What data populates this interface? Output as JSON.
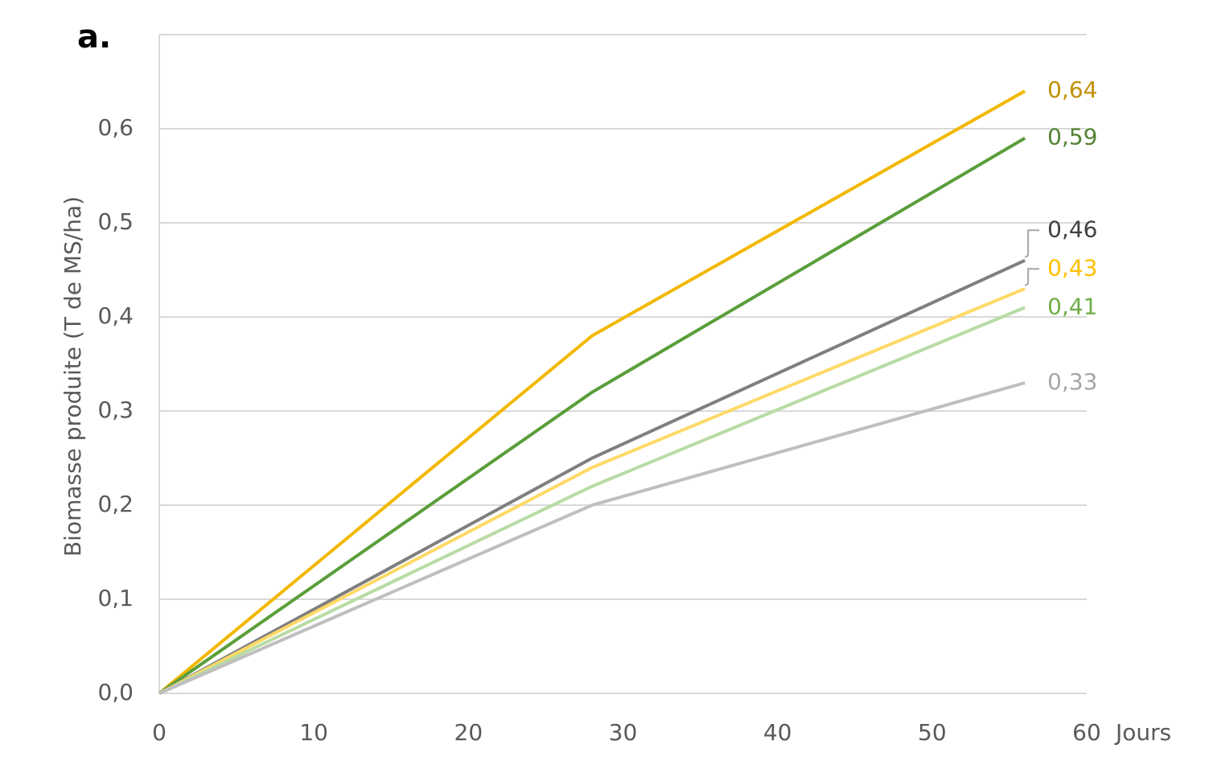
{
  "chart_data": {
    "type": "line",
    "annotation": "a.",
    "x_label": "Jours",
    "y_label": "Biomasse produite  (T de MS/ha)",
    "x": [
      0,
      28,
      56
    ],
    "xlim": [
      0,
      60
    ],
    "xticks": [
      0,
      10,
      20,
      30,
      40,
      50,
      60
    ],
    "ylim": [
      0,
      0.7
    ],
    "yticks": [
      {
        "value": 0,
        "label": "0,0"
      },
      {
        "value": 0.1,
        "label": "0,1"
      },
      {
        "value": 0.2,
        "label": "0,2"
      },
      {
        "value": 0.3,
        "label": "0,3"
      },
      {
        "value": 0.4,
        "label": "0,4"
      },
      {
        "value": 0.5,
        "label": "0,5"
      },
      {
        "value": 0.6,
        "label": "0,6"
      }
    ],
    "grid": true,
    "series": [
      {
        "color": "#f2b800",
        "label_color": "#c09000",
        "values": [
          0,
          0.38,
          0.64
        ],
        "value_labels": [
          null,
          null,
          "0,64"
        ]
      },
      {
        "color": "#5a9e3a",
        "label_color": "#548235",
        "values": [
          0,
          0.32,
          0.59
        ],
        "value_labels": [
          null,
          null,
          "0,59"
        ]
      },
      {
        "color": "#7f7f7f",
        "label_color": "#404040",
        "values": [
          0,
          0.25,
          0.46
        ],
        "value_labels": [
          null,
          null,
          "0,46"
        ]
      },
      {
        "color": "#ffd966",
        "label_color": "#ffc000",
        "values": [
          0,
          0.24,
          0.43
        ],
        "value_labels": [
          null,
          null,
          "0,43"
        ]
      },
      {
        "color": "#b8dba3",
        "label_color": "#70ad47",
        "values": [
          0,
          0.22,
          0.41
        ],
        "value_labels": [
          null,
          null,
          "0,41"
        ]
      },
      {
        "color": "#bfbfbf",
        "label_color": "#a6a6a6",
        "values": [
          0,
          0.2,
          0.33
        ],
        "value_labels": [
          null,
          null,
          "0,33"
        ]
      }
    ]
  }
}
